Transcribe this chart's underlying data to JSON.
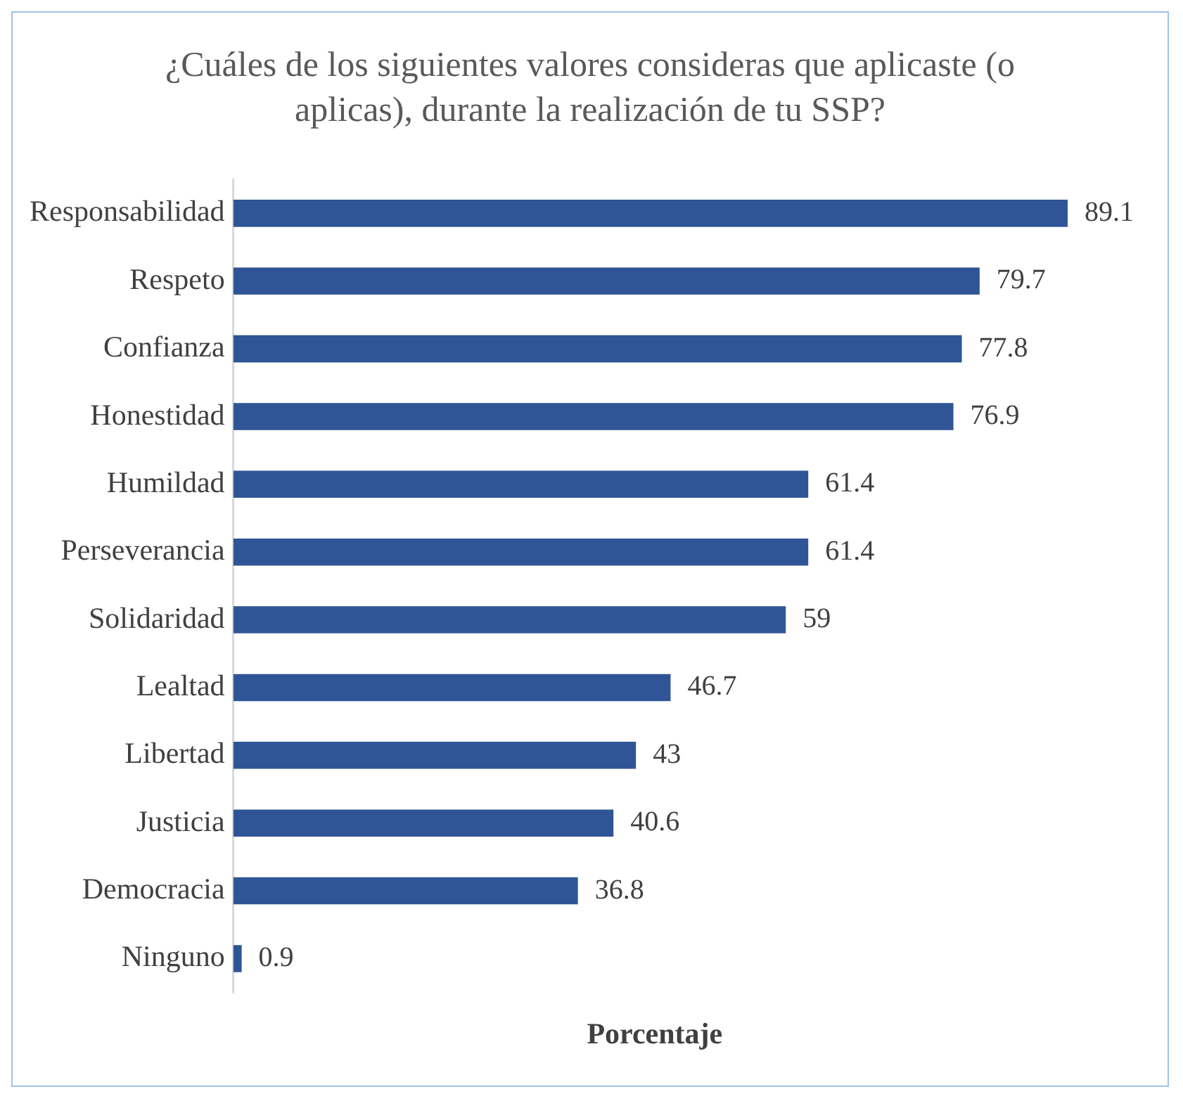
{
  "chart_data": {
    "type": "bar",
    "orientation": "horizontal",
    "title": "¿Cuáles de los siguientes valores consideras que aplicaste (o aplicas), durante la realización de tu SSP?",
    "xlabel": "Porcentaje",
    "categories": [
      "Responsabilidad",
      "Respeto",
      "Confianza",
      "Honestidad",
      "Humildad",
      "Perseverancia",
      "Solidaridad",
      "Lealtad",
      "Libertad",
      "Justicia",
      "Democracia",
      "Ninguno"
    ],
    "values": [
      89.1,
      79.7,
      77.8,
      76.9,
      61.4,
      61.4,
      59,
      46.7,
      43,
      40.6,
      36.8,
      0.9
    ],
    "color": "#2f5597",
    "data_labels": true,
    "grid": false,
    "legend": false,
    "tick_labels": "y"
  }
}
